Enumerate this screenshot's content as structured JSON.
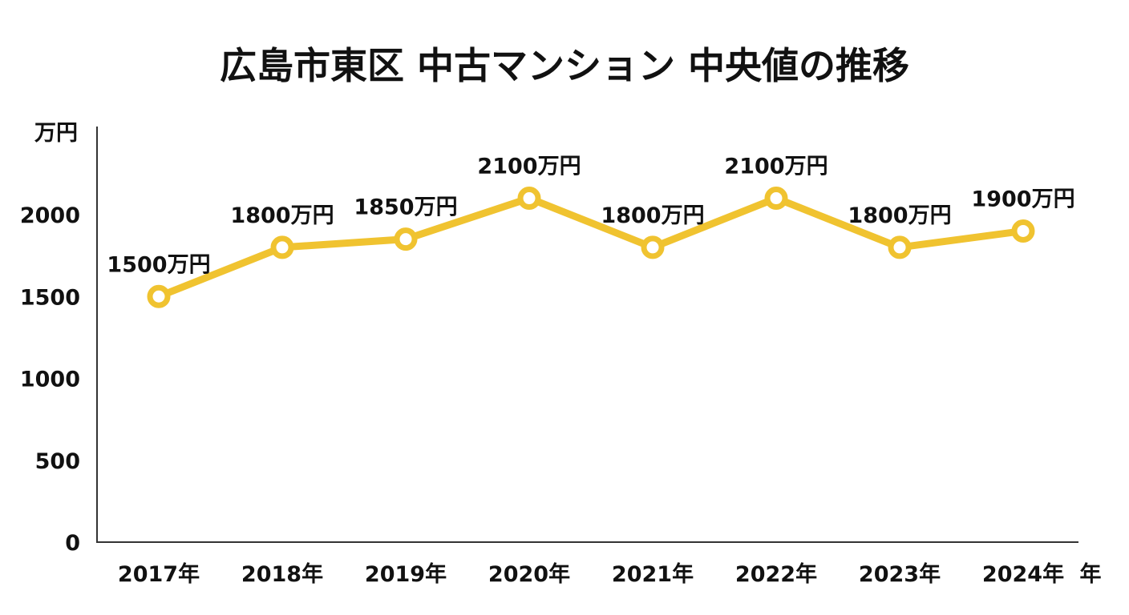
{
  "chart_data": {
    "type": "line",
    "title": "広島市東区 中古マンション 中央値の推移",
    "ylabel": "万円",
    "xlabel": "年",
    "categories": [
      "2017年",
      "2018年",
      "2019年",
      "2020年",
      "2021年",
      "2022年",
      "2023年",
      "2024年"
    ],
    "values": [
      1500,
      1800,
      1850,
      2100,
      1800,
      2100,
      1800,
      1900
    ],
    "data_labels": [
      "1500万円",
      "1800万円",
      "1850万円",
      "2100万円",
      "1800万円",
      "2100万円",
      "1800万円",
      "1900万円"
    ],
    "yticks": [
      "0",
      "500",
      "1000",
      "1500",
      "2000"
    ],
    "ytick_values": [
      0,
      500,
      1000,
      1500,
      2000
    ],
    "ylim": [
      0,
      2500
    ],
    "grid": false,
    "line_color": "#f0c330"
  }
}
